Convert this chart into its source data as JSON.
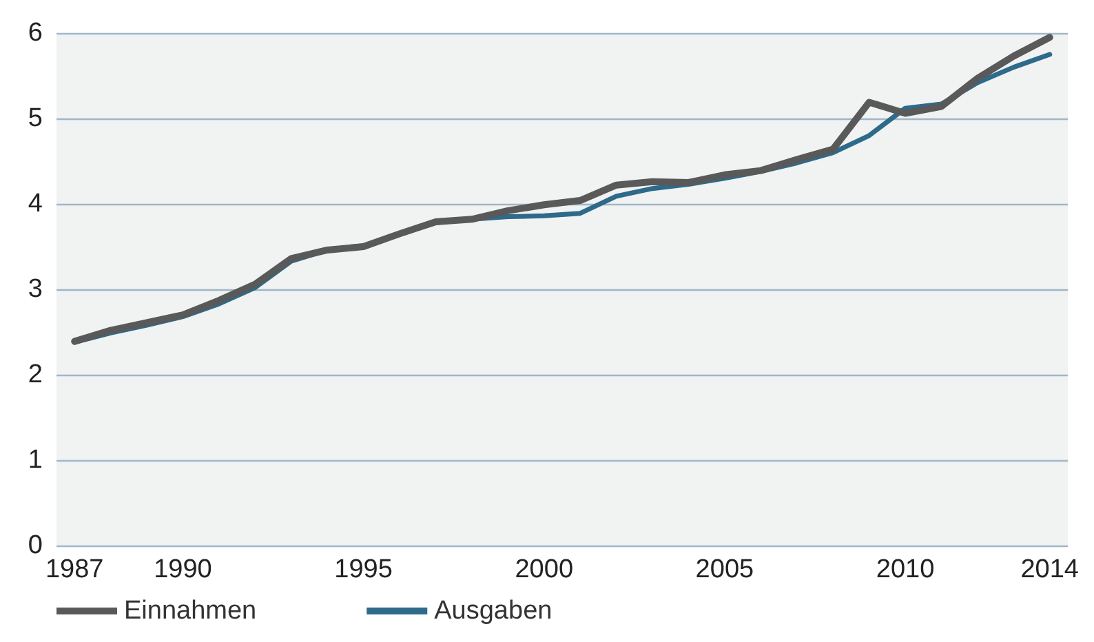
{
  "chart_data": {
    "type": "line",
    "x": [
      1987,
      1988,
      1989,
      1990,
      1991,
      1992,
      1993,
      1994,
      1995,
      1996,
      1997,
      1998,
      1999,
      2000,
      2001,
      2002,
      2003,
      2004,
      2005,
      2006,
      2007,
      2008,
      2009,
      2010,
      2011,
      2012,
      2013,
      2014
    ],
    "series": [
      {
        "name": "Einnahmen",
        "color": "#595959",
        "values": [
          2.39,
          2.52,
          2.61,
          2.7,
          2.87,
          3.06,
          3.36,
          3.46,
          3.5,
          3.65,
          3.79,
          3.82,
          3.92,
          3.99,
          4.04,
          4.22,
          4.26,
          4.25,
          4.34,
          4.39,
          4.52,
          4.64,
          5.19,
          5.06,
          5.14,
          5.47,
          5.73,
          5.95
        ]
      },
      {
        "name": "Ausgaben",
        "color": "#2e6a8a",
        "values": [
          2.38,
          2.49,
          2.58,
          2.68,
          2.83,
          3.02,
          3.33,
          3.46,
          3.51,
          3.65,
          3.78,
          3.82,
          3.85,
          3.86,
          3.89,
          4.09,
          4.18,
          4.23,
          4.3,
          4.38,
          4.48,
          4.6,
          4.8,
          5.12,
          5.17,
          5.42,
          5.6,
          5.75
        ]
      }
    ],
    "xlim": [
      1986.5,
      2014.5
    ],
    "xticks": [
      1987,
      1990,
      1995,
      2000,
      2005,
      2010,
      2014
    ],
    "ylim": [
      0,
      6
    ],
    "yticks": [
      0,
      1,
      2,
      3,
      4,
      5,
      6
    ],
    "grid": "y",
    "legend": "bottom left",
    "marker": "none",
    "line_style": "solid"
  }
}
